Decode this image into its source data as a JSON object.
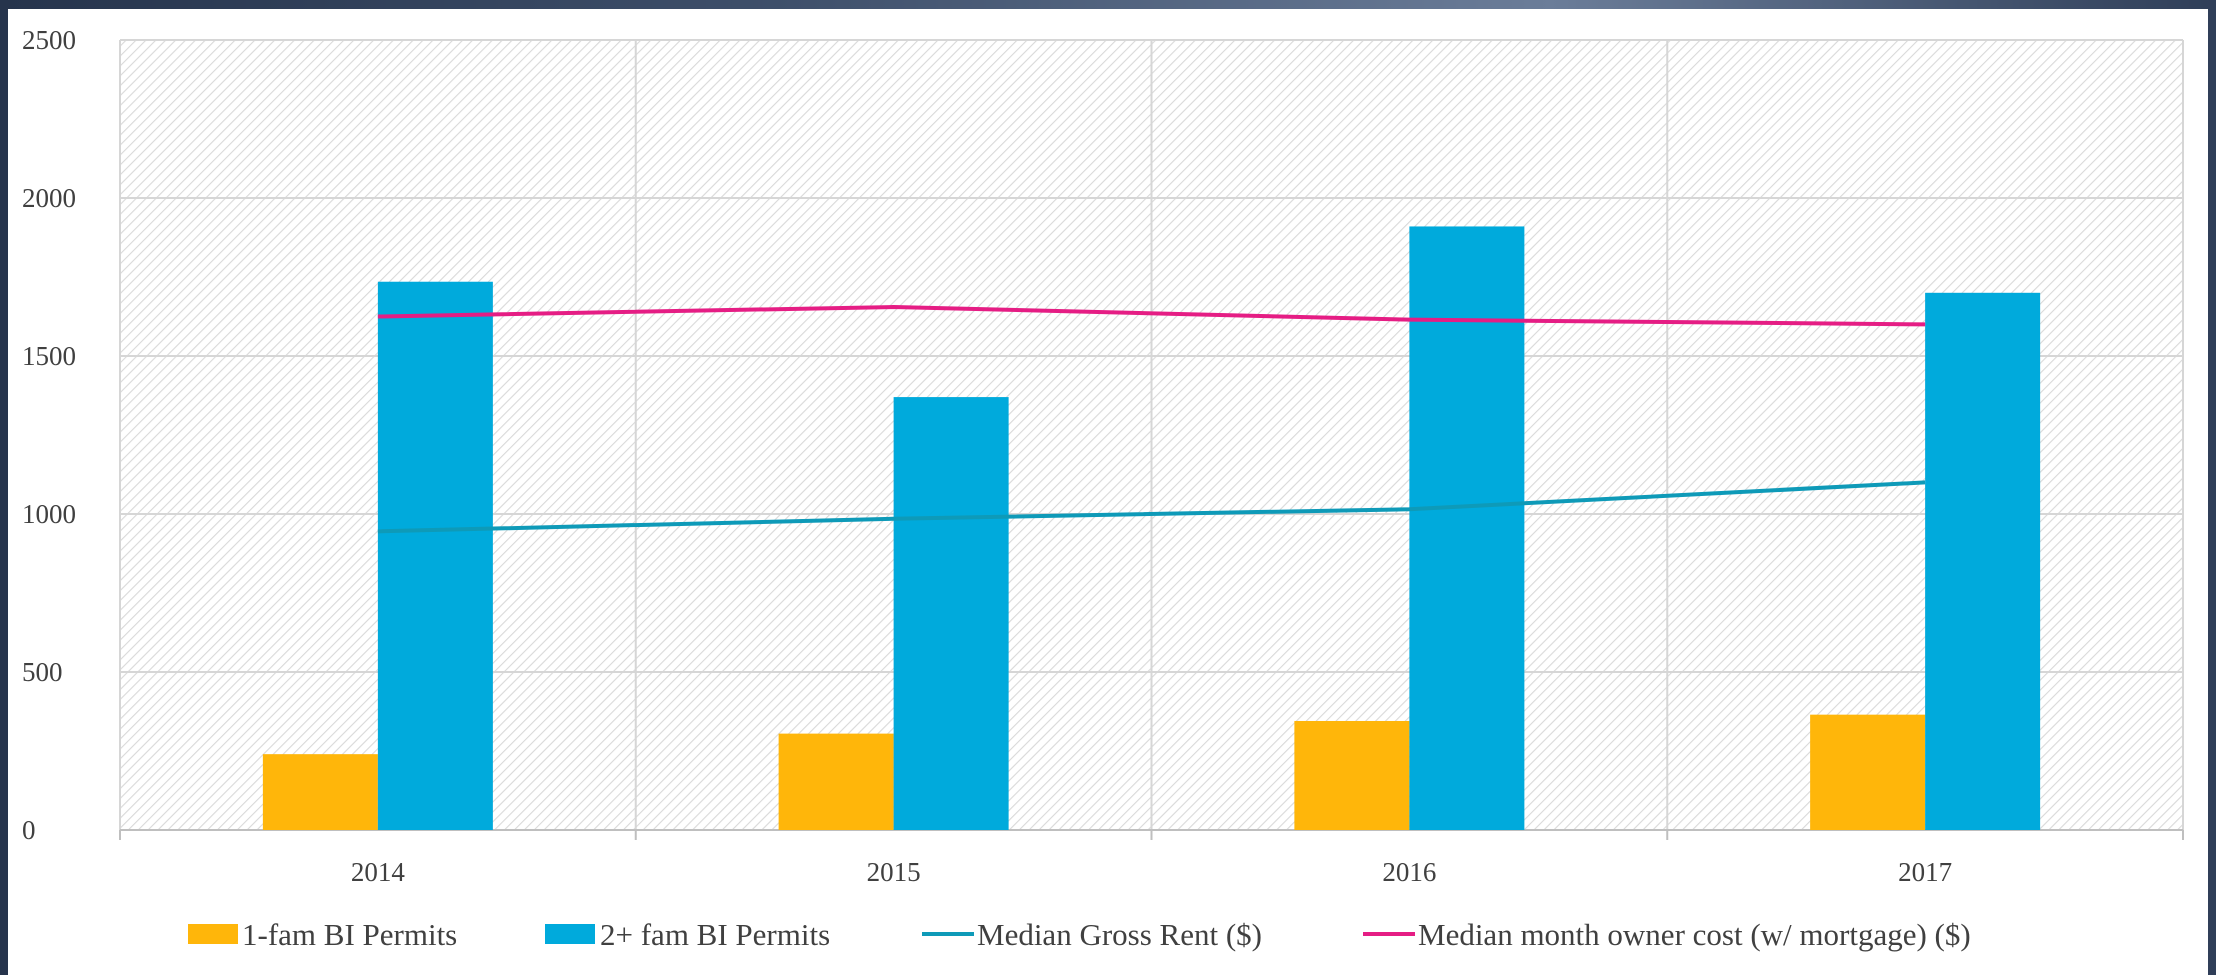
{
  "chart_data": {
    "type": "bar",
    "title": "",
    "xlabel": "",
    "ylabel": "",
    "categories": [
      "2014",
      "2015",
      "2016",
      "2017"
    ],
    "ylim": [
      0,
      2500
    ],
    "yticks": [
      "0",
      "500",
      "1000",
      "1500",
      "2000",
      "2500"
    ],
    "grid": true,
    "legend_position": "bottom",
    "series": [
      {
        "name": "1-fam BI Permits",
        "kind": "bar",
        "color": "#ffb60a",
        "values": [
          240,
          305,
          345,
          365
        ]
      },
      {
        "name": "2+ fam BI Permits",
        "kind": "bar",
        "color": "#00aadc",
        "values": [
          1735,
          1370,
          1910,
          1700
        ]
      },
      {
        "name": "Median Gross Rent ($)",
        "kind": "line",
        "color": "#0e9ab8",
        "values": [
          945,
          985,
          1015,
          1100
        ]
      },
      {
        "name": "Median month owner cost (w/ mortgage) ($)",
        "kind": "line",
        "color": "#e51d84",
        "values": [
          1625,
          1655,
          1615,
          1600
        ]
      }
    ]
  }
}
